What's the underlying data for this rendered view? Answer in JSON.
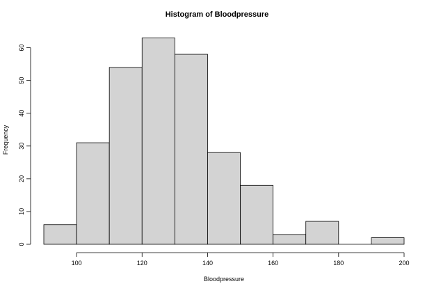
{
  "chart_data": {
    "type": "bar",
    "title": "Histogram of Bloodpressure",
    "xlabel": "Bloodpressure",
    "ylabel": "Frequency",
    "bins": [
      {
        "from": 90,
        "to": 100,
        "count": 6
      },
      {
        "from": 100,
        "to": 110,
        "count": 31
      },
      {
        "from": 110,
        "to": 120,
        "count": 54
      },
      {
        "from": 120,
        "to": 130,
        "count": 63
      },
      {
        "from": 130,
        "to": 140,
        "count": 58
      },
      {
        "from": 140,
        "to": 150,
        "count": 28
      },
      {
        "from": 150,
        "to": 160,
        "count": 18
      },
      {
        "from": 160,
        "to": 170,
        "count": 3
      },
      {
        "from": 170,
        "to": 180,
        "count": 7
      },
      {
        "from": 180,
        "to": 190,
        "count": 0
      },
      {
        "from": 190,
        "to": 200,
        "count": 2
      }
    ],
    "xticks": [
      "100",
      "120",
      "140",
      "160",
      "180",
      "200"
    ],
    "yticks": [
      "0",
      "10",
      "20",
      "30",
      "40",
      "50",
      "60"
    ],
    "xlim": [
      90,
      200
    ],
    "ylim": [
      0,
      63
    ],
    "grid": false,
    "bar_fill": "#d3d3d3",
    "bar_stroke": "#000000"
  }
}
